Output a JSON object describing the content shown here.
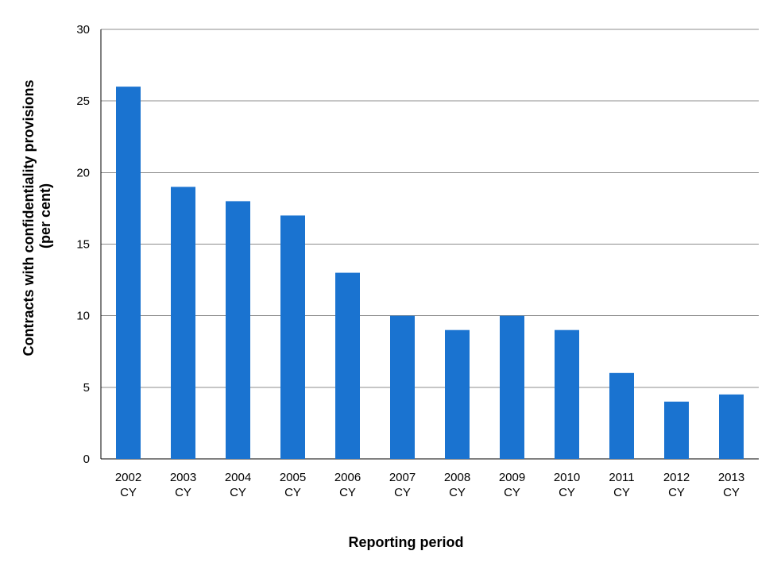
{
  "chart_data": {
    "type": "bar",
    "categories": [
      [
        "2002",
        "CY"
      ],
      [
        "2003",
        "CY"
      ],
      [
        "2004",
        "CY"
      ],
      [
        "2005",
        "CY"
      ],
      [
        "2006",
        "CY"
      ],
      [
        "2007",
        "CY"
      ],
      [
        "2008",
        "CY"
      ],
      [
        "2009",
        "CY"
      ],
      [
        "2010",
        "CY"
      ],
      [
        "2011",
        "CY"
      ],
      [
        "2012",
        "CY"
      ],
      [
        "2013",
        "CY"
      ]
    ],
    "values": [
      26,
      19,
      18,
      17,
      13,
      10,
      9,
      10,
      9,
      6,
      4,
      4.5
    ],
    "xlabel": "Reporting period",
    "ylabel": [
      "Contracts with confidentiality provisions",
      "(per cent)"
    ],
    "ylim": [
      0,
      30
    ],
    "yticks": [
      "0",
      "5",
      "10",
      "15",
      "20",
      "25",
      "30"
    ],
    "grid": true,
    "legend": "none",
    "colors": {
      "bar": "#1a73d0",
      "grid": "#8c8c8c",
      "axis": "#000000"
    }
  }
}
